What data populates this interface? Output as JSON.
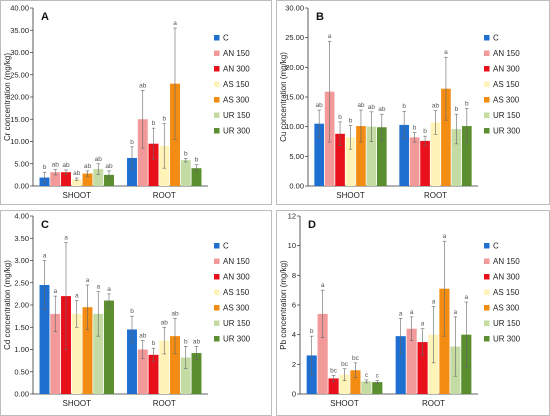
{
  "colors": {
    "C": "#1f6fd0",
    "AN 150": "#f29a9a",
    "AN 300": "#e8101a",
    "AS 150": "#fff3b8",
    "AS 300": "#f28c12",
    "UR 150": "#c4dca4",
    "UR 300": "#5a8e2e"
  },
  "chart_data": [
    {
      "type": "bar",
      "panel": "A",
      "ylabel": "Cr concentration (mg/kg)",
      "ylim": [
        0,
        40
      ],
      "yticks": [
        "0.00",
        "5.00",
        "10.00",
        "15.00",
        "20.00",
        "25.00",
        "30.00",
        "35.00",
        "40.00"
      ],
      "categories": [
        "SHOOT",
        "ROOT"
      ],
      "legend": [
        "C",
        "AN 150",
        "AN 300",
        "AS 150",
        "AS 300",
        "UR 150",
        "UR 300"
      ],
      "series": [
        {
          "name": "C",
          "values": [
            1.9,
            6.3
          ],
          "errors": [
            1.2,
            2.5
          ],
          "letters": [
            "b",
            "b"
          ]
        },
        {
          "name": "AN 150",
          "values": [
            3.1,
            15.0
          ],
          "errors": [
            0.6,
            6.5
          ],
          "letters": [
            "ab",
            "ab"
          ]
        },
        {
          "name": "AN 300",
          "values": [
            3.1,
            9.5
          ],
          "errors": [
            0.5,
            3.5
          ],
          "letters": [
            "ab",
            "b"
          ]
        },
        {
          "name": "AS 150",
          "values": [
            1.5,
            9.0
          ],
          "errors": [
            0.3,
            5.0
          ],
          "letters": [
            "ab",
            "b"
          ]
        },
        {
          "name": "AS 300",
          "values": [
            2.8,
            23.0
          ],
          "errors": [
            0.6,
            12.5
          ],
          "letters": [
            "ab",
            "a"
          ]
        },
        {
          "name": "UR 150",
          "values": [
            3.8,
            5.8
          ],
          "errors": [
            1.2,
            0.4
          ],
          "letters": [
            "ab",
            "b"
          ]
        },
        {
          "name": "UR 300",
          "values": [
            2.5,
            4.0
          ],
          "errors": [
            0.9,
            0.8
          ],
          "letters": [
            "ab",
            "b"
          ]
        }
      ]
    },
    {
      "type": "bar",
      "panel": "B",
      "ylabel": "Cu concentration (mg/kg)",
      "ylim": [
        0,
        30
      ],
      "yticks": [
        "0.00",
        "5.00",
        "10.00",
        "15.00",
        "20.00",
        "25.00",
        "30.00"
      ],
      "categories": [
        "SHOOT",
        "ROOT"
      ],
      "legend": [
        "C",
        "AN 150",
        "AN 300",
        "AS 150",
        "AS 300",
        "UR 150",
        "UR 300"
      ],
      "series": [
        {
          "name": "C",
          "values": [
            10.5,
            10.3
          ],
          "errors": [
            2.3,
            2.3
          ],
          "letters": [
            "ab",
            "b"
          ]
        },
        {
          "name": "AN 150",
          "values": [
            15.9,
            8.2
          ],
          "errors": [
            8.5,
            0.8
          ],
          "letters": [
            "a",
            "b"
          ]
        },
        {
          "name": "AN 300",
          "values": [
            8.8,
            7.6
          ],
          "errors": [
            2.0,
            0.8
          ],
          "letters": [
            "b",
            "b"
          ]
        },
        {
          "name": "AS 150",
          "values": [
            8.2,
            10.7
          ],
          "errors": [
            2.0,
            2.0
          ],
          "letters": [
            "b",
            "ab"
          ]
        },
        {
          "name": "AS 300",
          "values": [
            10.1,
            16.4
          ],
          "errors": [
            2.7,
            5.3
          ],
          "letters": [
            "ab",
            "a"
          ]
        },
        {
          "name": "UR 150",
          "values": [
            10.0,
            9.6
          ],
          "errors": [
            2.5,
            2.5
          ],
          "letters": [
            "ab",
            "b"
          ]
        },
        {
          "name": "UR 300",
          "values": [
            9.9,
            10.1
          ],
          "errors": [
            2.2,
            3.0
          ],
          "letters": [
            "ab",
            "b"
          ]
        }
      ]
    },
    {
      "type": "bar",
      "panel": "C",
      "ylabel": "Cd concentration (mg/kg)",
      "ylim": [
        0,
        4
      ],
      "yticks": [
        "0.00",
        "0.50",
        "1.00",
        "1.50",
        "2.00",
        "2.50",
        "3.00",
        "3.50",
        "4.00"
      ],
      "categories": [
        "SHOOT",
        "ROOT"
      ],
      "legend": [
        "C",
        "AN 150",
        "AN 300",
        "AS 150",
        "AS 300",
        "UR 150",
        "UR 300"
      ],
      "series": [
        {
          "name": "C",
          "values": [
            2.45,
            1.45
          ],
          "errors": [
            0.55,
            0.3
          ],
          "letters": [
            "a",
            "b"
          ]
        },
        {
          "name": "AN 150",
          "values": [
            1.8,
            1.0
          ],
          "errors": [
            0.4,
            0.2
          ],
          "letters": [
            "a",
            "ab"
          ]
        },
        {
          "name": "AN 300",
          "values": [
            2.2,
            0.88
          ],
          "errors": [
            1.2,
            0.15
          ],
          "letters": [
            "a",
            "b"
          ]
        },
        {
          "name": "AS 150",
          "values": [
            1.8,
            1.2
          ],
          "errors": [
            0.3,
            0.3
          ],
          "letters": [
            "a",
            "ab"
          ]
        },
        {
          "name": "AS 300",
          "values": [
            1.95,
            1.3
          ],
          "errors": [
            0.5,
            0.4
          ],
          "letters": [
            "a",
            "ab"
          ]
        },
        {
          "name": "UR 150",
          "values": [
            1.8,
            0.82
          ],
          "errors": [
            0.5,
            0.25
          ],
          "letters": [
            "a",
            "b"
          ]
        },
        {
          "name": "UR 300",
          "values": [
            2.1,
            0.92
          ],
          "errors": [
            0.15,
            0.15
          ],
          "letters": [
            "a",
            "ab"
          ]
        }
      ]
    },
    {
      "type": "bar",
      "panel": "D",
      "ylabel": "Pb concentration (mg/kg)",
      "ylim": [
        0,
        12
      ],
      "yticks": [
        "0",
        "2",
        "4",
        "6",
        "8",
        "10",
        "12"
      ],
      "categories": [
        "SHOOT",
        "ROOT"
      ],
      "legend": [
        "C",
        "AN 150",
        "AN 300",
        "AS 150",
        "AS 300",
        "UR 150",
        "UR 300"
      ],
      "series": [
        {
          "name": "C",
          "values": [
            2.6,
            3.9
          ],
          "errors": [
            1.3,
            1.2
          ],
          "letters": [
            "b",
            "a"
          ]
        },
        {
          "name": "AN 150",
          "values": [
            5.4,
            4.4
          ],
          "errors": [
            1.6,
            0.8
          ],
          "letters": [
            "a",
            "a"
          ]
        },
        {
          "name": "AN 300",
          "values": [
            1.05,
            3.5
          ],
          "errors": [
            0.2,
            0.9
          ],
          "letters": [
            "bc",
            "a"
          ]
        },
        {
          "name": "AS 150",
          "values": [
            1.3,
            4.0
          ],
          "errors": [
            0.4,
            1.9
          ],
          "letters": [
            "bc",
            "a"
          ]
        },
        {
          "name": "AS 300",
          "values": [
            1.6,
            7.1
          ],
          "errors": [
            0.5,
            3.2
          ],
          "letters": [
            "bc",
            "a"
          ]
        },
        {
          "name": "UR 150",
          "values": [
            0.85,
            3.2
          ],
          "errors": [
            0.1,
            2.0
          ],
          "letters": [
            "c",
            "a"
          ]
        },
        {
          "name": "UR 300",
          "values": [
            0.8,
            4.0
          ],
          "errors": [
            0.1,
            2.2
          ],
          "letters": [
            "c",
            "a"
          ]
        }
      ]
    }
  ]
}
